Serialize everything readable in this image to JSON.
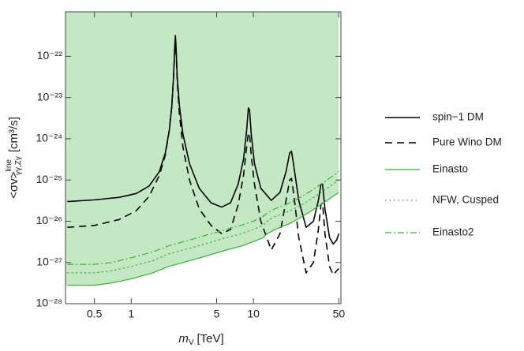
{
  "chart_data": {
    "type": "line",
    "x_label": {
      "main": "m",
      "sub": "V",
      "unit": "[TeV]"
    },
    "y_label": {
      "main": "<σv>",
      "sup": "line",
      "sub": "γγ,Zγ",
      "unit": "[cm³/s]"
    },
    "x_scale": "log",
    "y_scale": "log",
    "xlim": [
      0.29,
      52
    ],
    "ylim": [
      1e-28,
      1.2e-21
    ],
    "xticks": [
      0.5,
      1,
      5,
      10,
      50
    ],
    "yticks": [
      {
        "value": 1e-28,
        "label": "10⁻²⁸"
      },
      {
        "value": 1e-27,
        "label": "10⁻²⁷"
      },
      {
        "value": 1e-26,
        "label": "10⁻²⁶"
      },
      {
        "value": 1e-25,
        "label": "10⁻²⁵"
      },
      {
        "value": 1e-24,
        "label": "10⁻²⁴"
      },
      {
        "value": 1e-23,
        "label": "10⁻²³"
      },
      {
        "value": 1e-22,
        "label": "10⁻²²"
      }
    ],
    "grid": false,
    "legend": "outside right",
    "series": [
      {
        "name": "spin−1 DM",
        "color": "#000000",
        "dash": "solid",
        "width": 1.6,
        "x": [
          0.3,
          0.5,
          0.8,
          1.1,
          1.4,
          1.7,
          1.9,
          2.05,
          2.15,
          2.22,
          2.27,
          2.3,
          2.33,
          2.38,
          2.48,
          2.65,
          3,
          3.6,
          4.5,
          5.5,
          6.5,
          7.5,
          8.3,
          8.8,
          9.1,
          9.3,
          9.6,
          10.2,
          11.5,
          14,
          16.5,
          18.5,
          19.8,
          20.5,
          21.5,
          23.5,
          27,
          31,
          34,
          35.7,
          36.8,
          38.5,
          42,
          45,
          48,
          50
        ],
        "values": [
          3e-26,
          3.3e-26,
          3.8e-26,
          4.7e-26,
          7.1e-26,
          1.6e-25,
          4.5e-25,
          1.6e-24,
          6.3e-24,
          3.2e-23,
          1.6e-22,
          3.2e-22,
          1.6e-22,
          3.2e-23,
          6.3e-24,
          1.3e-24,
          2.5e-25,
          6.3e-26,
          2.8e-26,
          2.2e-26,
          2.8e-26,
          7.9e-26,
          3.2e-25,
          1.6e-24,
          5.6e-24,
          5e-24,
          1.3e-24,
          2.5e-25,
          6.3e-26,
          3.2e-26,
          5e-26,
          1.6e-25,
          4.5e-25,
          5e-25,
          2e-25,
          3.2e-26,
          7.1e-27,
          1e-26,
          3.2e-26,
          7.9e-26,
          7.9e-26,
          2e-26,
          4e-27,
          2.8e-27,
          3.5e-27,
          5e-27
        ]
      },
      {
        "name": "Pure Wino DM",
        "color": "#000000",
        "dash": "dashed",
        "width": 1.6,
        "x": [
          0.3,
          0.5,
          0.8,
          1.1,
          1.4,
          1.7,
          1.9,
          2.05,
          2.15,
          2.22,
          2.27,
          2.3,
          2.33,
          2.38,
          2.48,
          2.65,
          3,
          3.6,
          4.5,
          5.5,
          6.5,
          7.5,
          8.3,
          8.8,
          9.1,
          9.3,
          9.6,
          10.2,
          11.5,
          14,
          16.5,
          18.5,
          19.8,
          20.5,
          21.5,
          23.5,
          27,
          31,
          34,
          35.7,
          36.8,
          38.5,
          42,
          45,
          48,
          50
        ],
        "values": [
          7.1e-27,
          7.9e-27,
          1.1e-26,
          1.8e-26,
          4e-26,
          1.3e-25,
          4e-25,
          1.6e-24,
          6.3e-24,
          3.2e-23,
          1.3e-22,
          2.5e-22,
          1.3e-22,
          2.5e-23,
          4e-24,
          6.3e-25,
          1e-25,
          2e-26,
          7.9e-27,
          5e-27,
          6.3e-27,
          2.5e-26,
          1.3e-25,
          6.3e-25,
          1.4e-24,
          1.3e-24,
          4e-25,
          7.9e-26,
          1e-26,
          2e-27,
          5e-27,
          3.2e-26,
          1e-25,
          1.1e-25,
          4e-26,
          4e-27,
          5.6e-28,
          1e-27,
          6.3e-27,
          2.5e-26,
          2.8e-26,
          5e-27,
          7.9e-28,
          5e-28,
          6.3e-28,
          7.1e-28
        ]
      },
      {
        "name": "Einasto",
        "color": "#2eb82e",
        "dash": "solid",
        "width": 1.2,
        "fill": "#c3e8c3",
        "x": [
          0.3,
          0.5,
          0.7,
          1,
          1.5,
          2,
          3,
          4,
          6,
          8,
          10,
          12,
          13,
          15,
          20,
          25,
          30,
          40,
          50
        ],
        "values": [
          2.8e-28,
          2.8e-28,
          3.2e-28,
          4e-28,
          5.6e-28,
          7.9e-28,
          1.1e-27,
          1.4e-27,
          2e-27,
          2.5e-27,
          3.2e-27,
          4e-27,
          5e-27,
          6.3e-27,
          8.9e-27,
          1.3e-26,
          1.8e-26,
          3.2e-26,
          5e-26
        ]
      },
      {
        "name": "NFW, Cusped",
        "color": "#2eb82e",
        "dash": "dotted",
        "width": 1.2,
        "x": [
          0.3,
          0.5,
          0.7,
          1,
          1.5,
          2,
          3,
          4,
          6,
          8,
          10,
          12,
          13,
          15,
          20,
          25,
          30,
          40,
          50
        ],
        "values": [
          5.6e-28,
          5.6e-28,
          6.3e-28,
          8e-28,
          1.1e-27,
          1.6e-27,
          2.2e-27,
          2.8e-27,
          4e-27,
          5e-27,
          6.3e-27,
          8e-27,
          1e-26,
          1.3e-26,
          1.8e-26,
          2.5e-26,
          3.5e-26,
          6.3e-26,
          1e-25
        ]
      },
      {
        "name": "Einasto2",
        "color": "#2eb82e",
        "dash": "dashdot",
        "width": 1.2,
        "x": [
          0.3,
          0.5,
          0.7,
          1,
          1.5,
          2,
          3,
          4,
          6,
          8,
          10,
          12,
          13,
          15,
          20,
          25,
          30,
          40,
          50
        ],
        "values": [
          9e-28,
          9e-28,
          1e-27,
          1.3e-27,
          1.8e-27,
          2.5e-27,
          3.5e-27,
          4.5e-27,
          6.3e-27,
          8e-27,
          1e-26,
          1.3e-26,
          1.6e-26,
          2e-26,
          2.8e-26,
          4e-26,
          5.6e-26,
          1e-25,
          1.6e-25
        ]
      }
    ]
  }
}
